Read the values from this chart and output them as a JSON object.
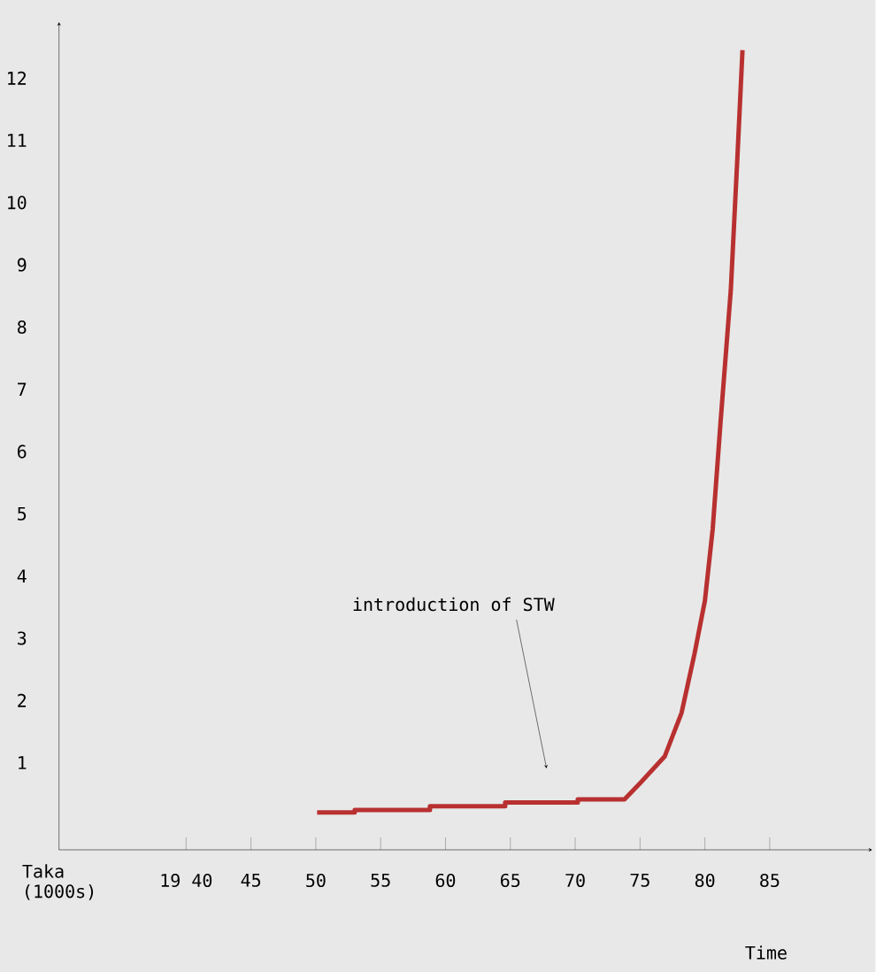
{
  "chart_data": {
    "type": "line",
    "annotations": [
      "introduction of STW",
      "Taka (1000s)",
      "Time"
    ],
    "x": [
      50.1,
      53.0,
      53.0,
      58.8,
      58.8,
      64.6,
      64.6,
      70.2,
      70.2,
      73.8,
      75,
      76.9,
      78.2,
      79.2,
      80,
      80.6,
      81.2,
      82,
      82.5,
      82.9
    ],
    "series": [
      {
        "color": "#b83030",
        "values": [
          0.2,
          0.2,
          0.24,
          0.24,
          0.3,
          0.3,
          0.36,
          0.36,
          0.41,
          0.41,
          0.67,
          1.1,
          1.8,
          2.75,
          3.6,
          4.75,
          6.45,
          8.6,
          10.7,
          12.45
        ]
      }
    ],
    "xlim": [
      30.2,
      92.9
    ],
    "ylim": [
      -0.4,
      12.9
    ],
    "xticks": [
      {
        "value": 40,
        "label": "19 40"
      },
      45,
      50,
      55,
      60,
      65,
      70,
      75,
      80,
      85
    ],
    "yticks": [
      1,
      2,
      3,
      4,
      5,
      6,
      7,
      8,
      9,
      10,
      11,
      12
    ],
    "grid": false,
    "marker": "none",
    "line_style": "solid"
  }
}
